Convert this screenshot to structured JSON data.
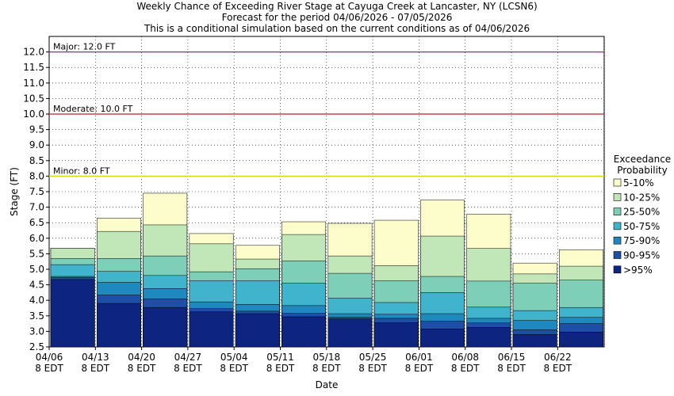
{
  "chart_data": {
    "type": "bar",
    "title_lines": [
      "Weekly Chance of Exceeding River Stage at Cayuga Creek at Lancaster, NY (LCSN6)",
      "Forecast for the period 04/06/2026 - 07/05/2026",
      "This is a conditional simulation based on the current conditions as of 04/06/2026"
    ],
    "xlabel": "Date",
    "ylabel": "Stage (FT)",
    "ylim": [
      2.5,
      12.5
    ],
    "y_ticks": [
      "2.5",
      "3.0",
      "3.5",
      "4.0",
      "4.5",
      "5.0",
      "5.5",
      "6.0",
      "6.5",
      "7.0",
      "7.5",
      "8.0",
      "8.5",
      "9.0",
      "9.5",
      "10.0",
      "10.5",
      "11.0",
      "11.5",
      "12.0"
    ],
    "x_ticks": [
      {
        "date": "04/06",
        "sub": "8 EDT"
      },
      {
        "date": "04/13",
        "sub": "8 EDT"
      },
      {
        "date": "04/20",
        "sub": "8 EDT"
      },
      {
        "date": "04/27",
        "sub": "8 EDT"
      },
      {
        "date": "05/04",
        "sub": "8 EDT"
      },
      {
        "date": "05/11",
        "sub": "8 EDT"
      },
      {
        "date": "05/18",
        "sub": "8 EDT"
      },
      {
        "date": "05/25",
        "sub": "8 EDT"
      },
      {
        "date": "06/01",
        "sub": "8 EDT"
      },
      {
        "date": "06/08",
        "sub": "8 EDT"
      },
      {
        "date": "06/15",
        "sub": "8 EDT"
      },
      {
        "date": "06/22",
        "sub": "8 EDT"
      }
    ],
    "thresholds": [
      {
        "label": "Major: 12.0 FT",
        "value": 12.0,
        "color": "#a020a0"
      },
      {
        "label": "Moderate: 10.0 FT",
        "value": 10.0,
        "color": "#c0202a"
      },
      {
        "label": "Minor: 8.0 FT",
        "value": 8.0,
        "color": "#d8d800"
      }
    ],
    "legend": {
      "title_lines": [
        "Exceedance",
        "Probability"
      ],
      "position": "right"
    },
    "series": [
      {
        "name": ">95%",
        "color": "#0d2480",
        "values": [
          4.67,
          3.9,
          3.77,
          3.63,
          3.57,
          3.47,
          3.4,
          3.28,
          3.08,
          3.13,
          2.9,
          2.98
        ]
      },
      {
        "name": "90-95%",
        "color": "#1e4fa6",
        "values": [
          4.73,
          4.17,
          4.05,
          3.73,
          3.65,
          3.58,
          3.45,
          3.42,
          3.33,
          3.27,
          3.05,
          3.25
        ]
      },
      {
        "name": "75-90%",
        "color": "#1f88bf",
        "values": [
          4.77,
          4.58,
          4.38,
          3.95,
          3.87,
          3.83,
          3.57,
          3.55,
          3.57,
          3.42,
          3.35,
          3.45
        ]
      },
      {
        "name": "50-75%",
        "color": "#3fb4cc",
        "values": [
          5.15,
          4.93,
          4.8,
          4.63,
          4.63,
          4.55,
          4.07,
          3.93,
          4.25,
          3.78,
          3.67,
          3.77
        ]
      },
      {
        "name": "25-50%",
        "color": "#7ecfb8",
        "values": [
          5.35,
          5.35,
          5.43,
          4.92,
          5.02,
          5.27,
          4.87,
          4.63,
          4.77,
          4.62,
          4.55,
          4.65
        ]
      },
      {
        "name": "10-25%",
        "color": "#c1e6b7",
        "values": [
          5.68,
          6.22,
          6.43,
          5.82,
          5.33,
          6.12,
          5.43,
          5.12,
          6.07,
          5.67,
          4.85,
          5.1
        ]
      },
      {
        "name": "5-10%",
        "color": "#fcfdcb",
        "values": [
          5.68,
          6.65,
          7.45,
          6.15,
          5.77,
          6.53,
          6.48,
          6.58,
          7.23,
          6.78,
          5.2,
          5.63
        ]
      }
    ]
  }
}
